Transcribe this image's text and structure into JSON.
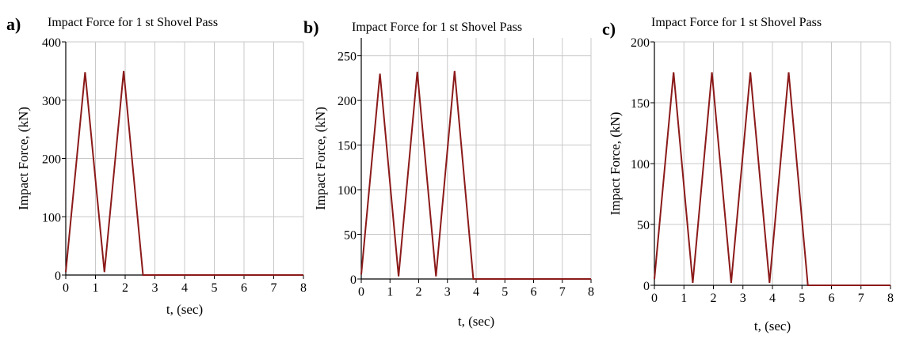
{
  "colors": {
    "series": "#8b1a1a",
    "grid": "#c8c8c8",
    "axis": "#000000"
  },
  "chart_data": [
    {
      "type": "line",
      "panel_label": "a)",
      "title": "Impact Force for 1 st Shovel Pass",
      "xlabel": "t, (sec)",
      "ylabel": "Impact Force, (kN)",
      "xlim": [
        0,
        8
      ],
      "ylim": [
        0,
        400
      ],
      "xticks": [
        0,
        1,
        2,
        3,
        4,
        5,
        6,
        7,
        8
      ],
      "yticks": [
        0,
        100,
        200,
        300,
        400
      ],
      "grid": true,
      "series": [
        {
          "x": [
            0,
            0.65,
            1.3,
            1.95,
            2.6,
            8
          ],
          "y": [
            5,
            348,
            5,
            350,
            0,
            0
          ]
        }
      ]
    },
    {
      "type": "line",
      "panel_label": "b)",
      "title": "Impact Force for 1 st Shovel Pass",
      "xlabel": "t, (sec)",
      "ylabel": "Impact Force, (kN)",
      "xlim": [
        0,
        8
      ],
      "ylim": [
        0,
        270
      ],
      "xticks": [
        0,
        1,
        2,
        3,
        4,
        5,
        6,
        7,
        8
      ],
      "yticks": [
        0,
        50,
        100,
        150,
        200,
        250
      ],
      "grid": true,
      "series": [
        {
          "x": [
            0,
            0.65,
            1.3,
            1.95,
            2.6,
            3.25,
            3.9,
            8
          ],
          "y": [
            5,
            230,
            3,
            232,
            3,
            233,
            0,
            0
          ]
        }
      ]
    },
    {
      "type": "line",
      "panel_label": "c)",
      "title": "Impact Force for 1 st Shovel Pass",
      "xlabel": "t, (sec)",
      "ylabel": "Impact Force, (kN)",
      "xlim": [
        0,
        8
      ],
      "ylim": [
        0,
        200
      ],
      "xticks": [
        0,
        1,
        2,
        3,
        4,
        5,
        6,
        7,
        8
      ],
      "yticks": [
        0,
        50,
        100,
        150,
        200
      ],
      "grid": true,
      "series": [
        {
          "x": [
            0,
            0.65,
            1.3,
            1.95,
            2.6,
            3.25,
            3.9,
            4.55,
            5.2,
            8
          ],
          "y": [
            5,
            175,
            2,
            175,
            2,
            175,
            2,
            175,
            0,
            0
          ]
        }
      ]
    }
  ]
}
